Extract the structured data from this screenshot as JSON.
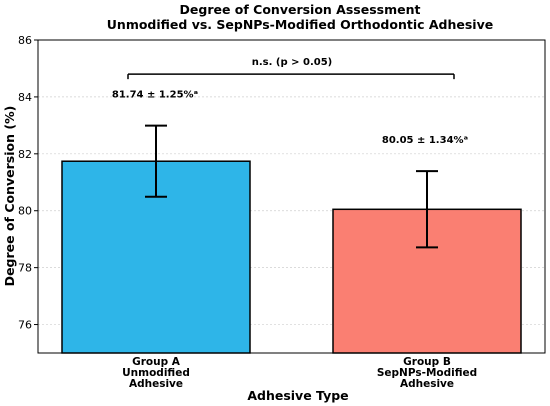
{
  "chart_data": {
    "type": "bar",
    "title": "Degree of Conversion Assessment",
    "subtitle": "Unmodified vs. SepNPs-Modified Orthodontic Adhesive",
    "xlabel": "Adhesive Type",
    "ylabel": "Degree of Conversion (%)",
    "ylim": [
      75,
      86
    ],
    "yticks": [
      76,
      78,
      80,
      82,
      84,
      86
    ],
    "grid": true,
    "categories": [
      [
        "Group A",
        "Unmodified",
        "Adhesive"
      ],
      [
        "Group B",
        "SepNPs-Modified",
        "Adhesive"
      ]
    ],
    "values": [
      81.74,
      80.05
    ],
    "errors": [
      1.25,
      1.34
    ],
    "colors": [
      "#2eb5e8",
      "#fa7f72"
    ],
    "data_labels": [
      "81.74 ± 1.25%ᵃ",
      "80.05 ± 1.34%ᵃ"
    ],
    "annotation": {
      "text": "n.s. (p > 0.05)",
      "y": 84.8
    }
  }
}
